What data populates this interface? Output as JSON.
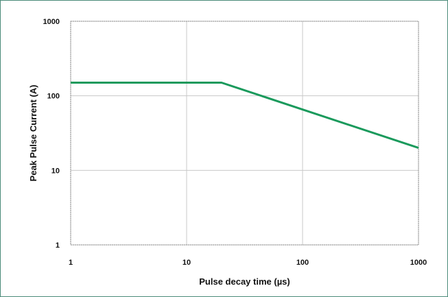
{
  "chart_data": {
    "type": "line",
    "title": "",
    "xlabel": "Pulse decay time (µs)",
    "ylabel": "Peak Pulse Current (A)",
    "x_scale": "log",
    "y_scale": "log",
    "xlim": [
      1,
      1000
    ],
    "ylim": [
      1,
      1000
    ],
    "x_ticks": [
      1,
      10,
      100,
      1000
    ],
    "y_ticks": [
      1,
      10,
      100,
      1000
    ],
    "x_tick_labels": [
      "1",
      "10",
      "100",
      "1000"
    ],
    "y_tick_labels": [
      "1",
      "10",
      "100",
      "1000"
    ],
    "grid": true,
    "legend": "none",
    "series": [
      {
        "color": "#1a9a5c",
        "points": [
          [
            1,
            150
          ],
          [
            20,
            150
          ],
          [
            1000,
            20
          ]
        ]
      }
    ]
  }
}
